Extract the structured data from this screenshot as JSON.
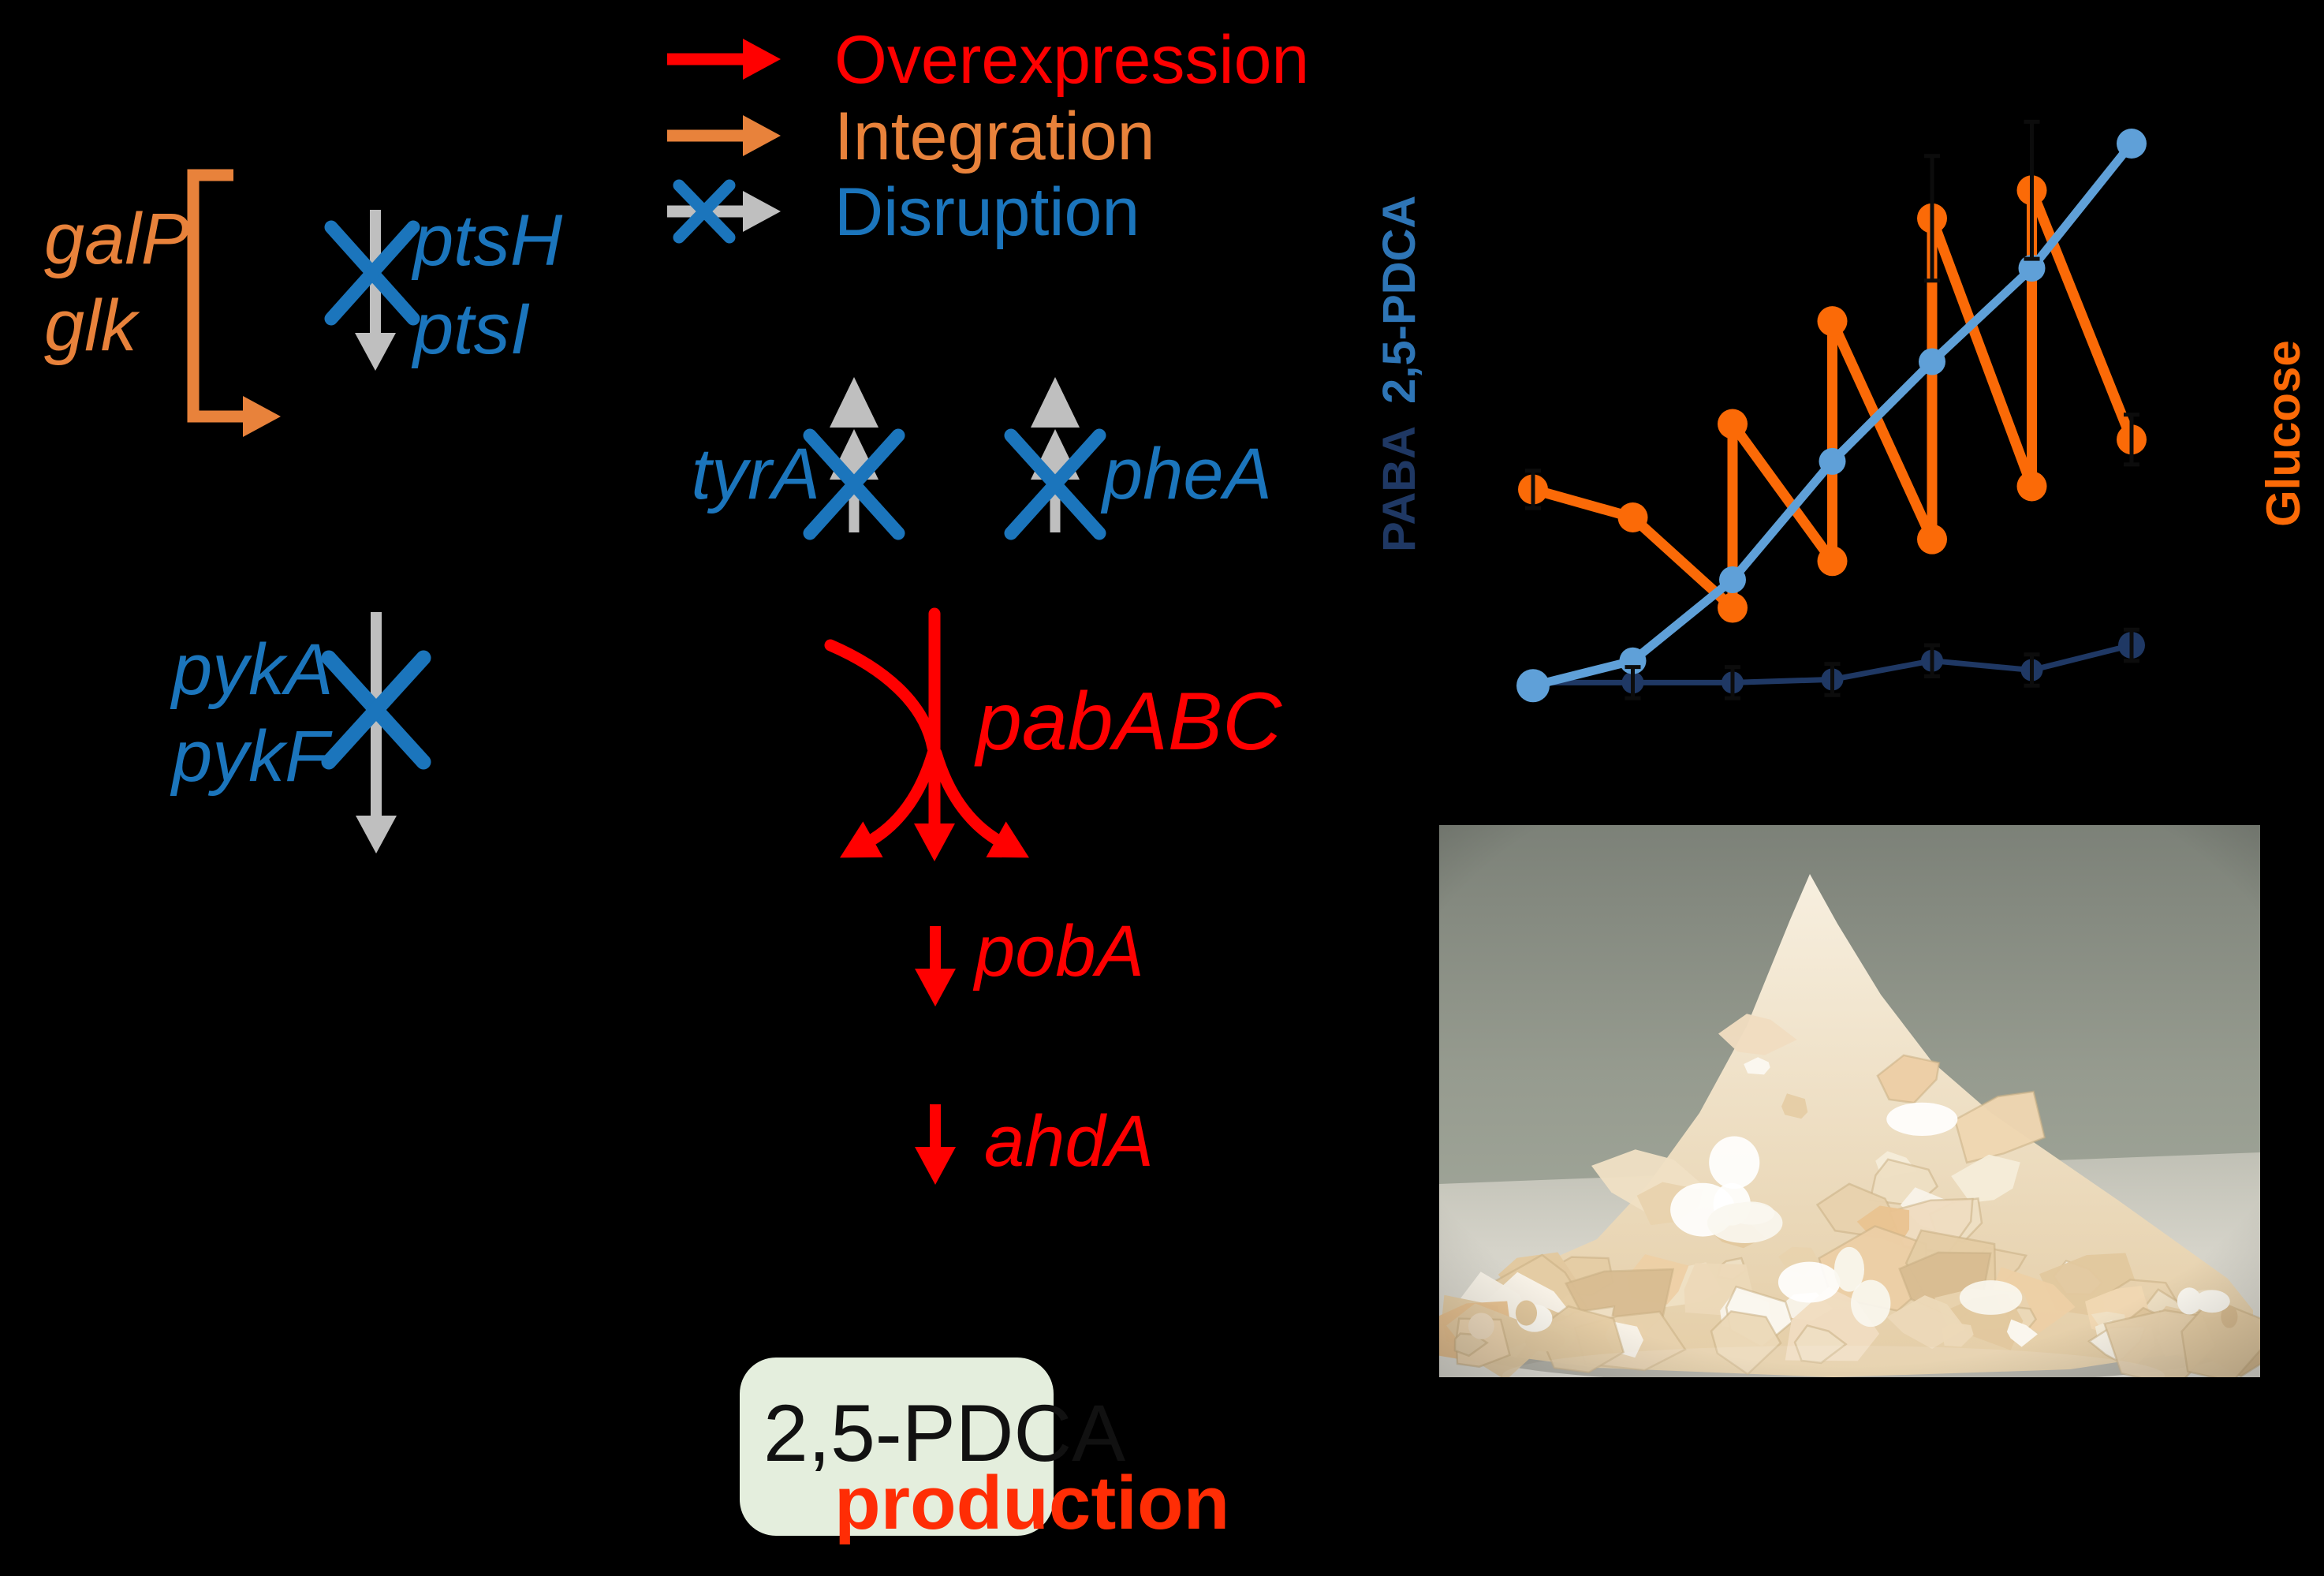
{
  "colors": {
    "background": "#000000",
    "overexpression_red": "#FF0000",
    "integration_orange": "#E8823B",
    "disruption_blue": "#1B75BC",
    "gray_arrow": "#BFBFBF",
    "chart_light_blue": "#5FA0D8",
    "chart_navy": "#1F3864",
    "chart_orange": "#FB6A07",
    "pdca_axis_blue": "#2E75B6",
    "product_box_green": "#E4EEDD",
    "production_red": "#FF2D05",
    "box_text_black": "#111111"
  },
  "legend": {
    "items": [
      {
        "label": "Overexpression",
        "symbol": "red-arrow"
      },
      {
        "label": "Integration",
        "symbol": "orange-arrow"
      },
      {
        "label": "Disruption",
        "symbol": "blue-x-gray-arrow"
      }
    ]
  },
  "pathway": {
    "galP": "galP",
    "glk": "glk",
    "ptsH": "ptsH",
    "ptsI": "ptsI",
    "pykA": "pykA",
    "pykF": "pykF",
    "tyrA": "tyrA",
    "pheA": "pheA",
    "pabABC": "pabABC",
    "pobA": "pobA",
    "ahdA": "ahdA"
  },
  "product_box": {
    "line1": "2,5-PDCA",
    "line2": "production"
  },
  "chart_data": {
    "type": "line",
    "x": [
      1,
      2,
      3,
      4,
      5,
      6,
      7
    ],
    "x_axis_visible": false,
    "grid": false,
    "legend_position": "none",
    "left_axis_labels": [
      "PABA",
      "2,5-PDCA"
    ],
    "right_axis_label": "Glucose",
    "ylim": [
      0,
      105
    ],
    "units": "relative (no scale shown)",
    "series": [
      {
        "name": "PABA",
        "axis": "left",
        "color": "#1F3864",
        "points": [
          [
            1,
            13.5
          ],
          [
            2,
            13.5
          ],
          [
            3,
            13.5
          ],
          [
            4,
            14
          ],
          [
            5,
            17
          ],
          [
            6,
            15.5
          ],
          [
            7,
            19.5
          ]
        ]
      },
      {
        "name": "Glucose",
        "axis": "right",
        "color": "#FB6A07",
        "points": [
          [
            1,
            44.5
          ],
          [
            2,
            40
          ],
          [
            3,
            25.5
          ],
          [
            3,
            55
          ],
          [
            4,
            33
          ],
          [
            4,
            71.5
          ],
          [
            5,
            36.5
          ],
          [
            5,
            88
          ],
          [
            6,
            45
          ],
          [
            6,
            92.5
          ],
          [
            7,
            52.5
          ]
        ],
        "note": "sawtooth fed-batch profile: vertical segments are glucose feed pulses"
      },
      {
        "name": "2,5-PDCA",
        "axis": "left",
        "color": "#5FA0D8",
        "points": [
          [
            1,
            13
          ],
          [
            2,
            17
          ],
          [
            3,
            30
          ],
          [
            4,
            49
          ],
          [
            5,
            65
          ],
          [
            6,
            80
          ],
          [
            7,
            100
          ]
        ]
      }
    ],
    "error_bars": [
      {
        "series": "Glucose",
        "point": [
          1,
          44.5
        ],
        "e": 3
      },
      {
        "series": "Glucose",
        "point": [
          5,
          88
        ],
        "e": 10
      },
      {
        "series": "Glucose",
        "point": [
          6,
          92.5
        ],
        "e": 11
      },
      {
        "series": "Glucose",
        "point": [
          7,
          52.5
        ],
        "e": 4
      },
      {
        "series": "PABA",
        "point": [
          2,
          13.5
        ],
        "e": 2.5
      },
      {
        "series": "PABA",
        "point": [
          3,
          13.5
        ],
        "e": 2.5
      },
      {
        "series": "PABA",
        "point": [
          4,
          14
        ],
        "e": 2.5
      },
      {
        "series": "PABA",
        "point": [
          5,
          17
        ],
        "e": 2.5
      },
      {
        "series": "PABA",
        "point": [
          6,
          15.5
        ],
        "e": 2.5
      },
      {
        "series": "PABA",
        "point": [
          7,
          19.5
        ],
        "e": 2.5
      }
    ]
  }
}
